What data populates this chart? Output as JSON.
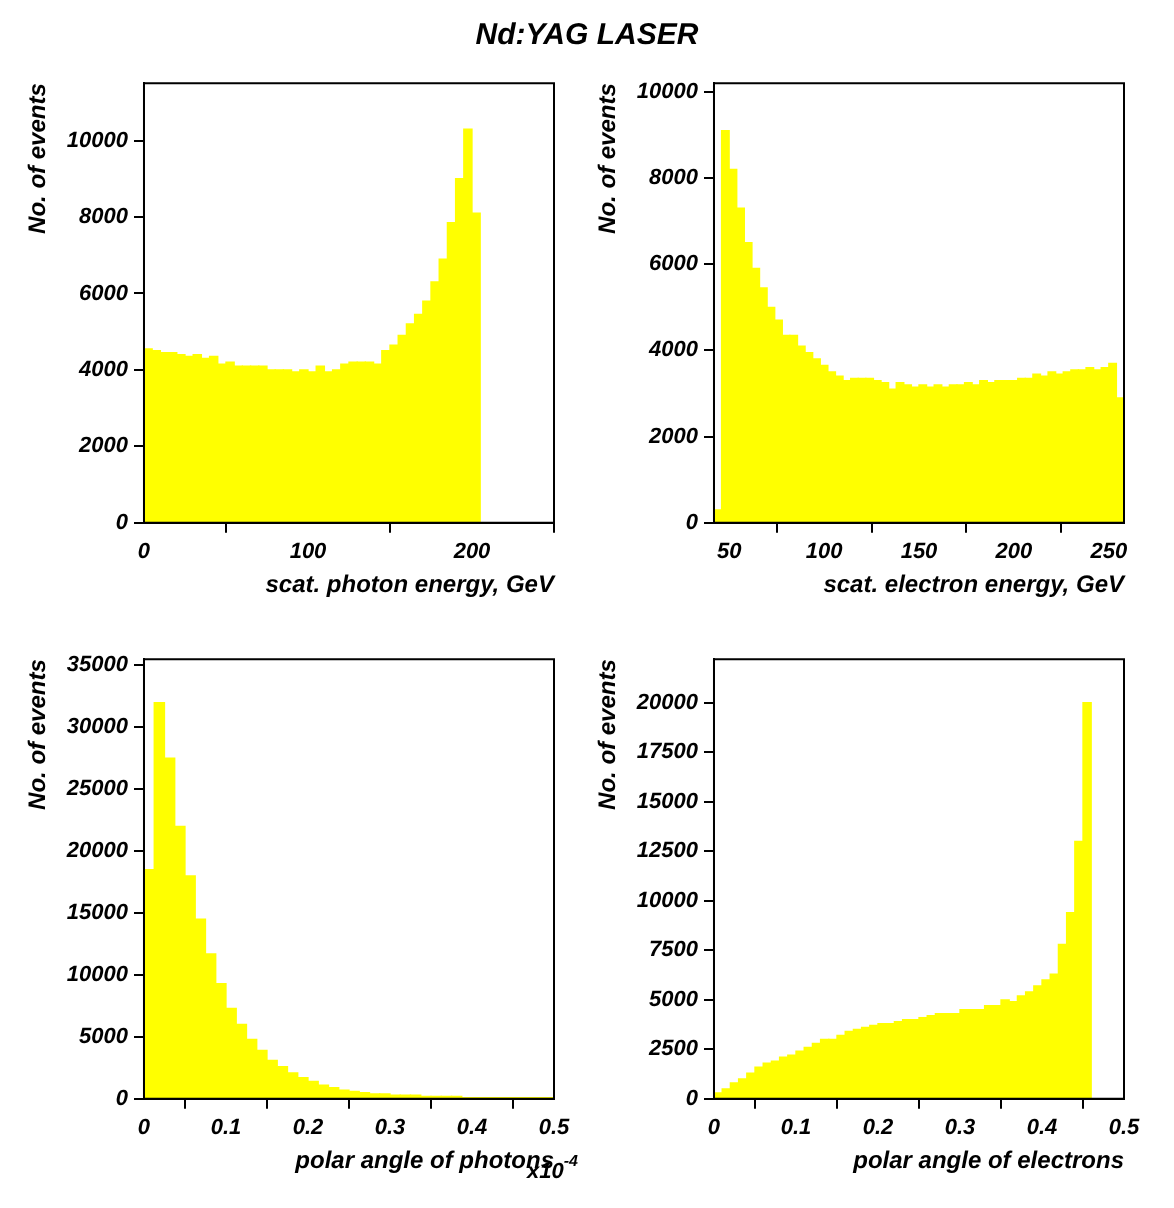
{
  "chart_data": [
    {
      "type": "histogram",
      "title": "Nd:YAG LASER",
      "xlabel": "scat. photon energy, GeV",
      "ylabel": "No. of events",
      "color": "#ffff00",
      "bins": [
        0,
        5,
        10,
        15,
        20,
        25,
        30,
        35,
        40,
        45,
        50,
        55,
        60,
        65,
        70,
        75,
        80,
        85,
        90,
        95,
        100,
        105,
        110,
        115,
        120,
        125,
        130,
        135,
        140,
        145,
        150,
        155,
        160,
        165,
        170,
        175,
        180,
        185,
        190,
        195,
        200,
        205
      ],
      "values": [
        4550,
        4500,
        4450,
        4450,
        4400,
        4350,
        4400,
        4300,
        4350,
        4150,
        4200,
        4100,
        4100,
        4100,
        4100,
        4000,
        4000,
        4000,
        3950,
        4000,
        3950,
        4100,
        3950,
        4000,
        4150,
        4200,
        4200,
        4200,
        4150,
        4500,
        4650,
        4900,
        5200,
        5450,
        5800,
        6300,
        6900,
        7850,
        9000,
        10300,
        8100
      ],
      "xlim": [
        0,
        250
      ],
      "xticks": [
        0,
        100,
        200
      ],
      "ylim": [
        0,
        11500
      ],
      "yticks": [
        0,
        2000,
        4000,
        6000,
        8000,
        10000
      ]
    },
    {
      "type": "histogram",
      "xlabel": "scat. electron energy, GeV",
      "ylabel": "No. of events",
      "color": "#ffff00",
      "bins": [
        42,
        46,
        50,
        54,
        58,
        62,
        66,
        70,
        74,
        78,
        82,
        86,
        90,
        94,
        98,
        102,
        106,
        110,
        114,
        118,
        122,
        126,
        130,
        134,
        138,
        142,
        146,
        150,
        154,
        158,
        162,
        166,
        170,
        174,
        178,
        182,
        186,
        190,
        194,
        198,
        202,
        206,
        210,
        214,
        218,
        222,
        226,
        230,
        234,
        238,
        242,
        246,
        250,
        254,
        258
      ],
      "values": [
        300,
        9100,
        8200,
        7300,
        6500,
        5900,
        5450,
        5000,
        4700,
        4350,
        4350,
        4100,
        3950,
        3800,
        3650,
        3500,
        3400,
        3300,
        3350,
        3350,
        3350,
        3300,
        3250,
        3100,
        3250,
        3200,
        3150,
        3200,
        3150,
        3200,
        3150,
        3200,
        3200,
        3250,
        3200,
        3300,
        3250,
        3300,
        3300,
        3300,
        3350,
        3350,
        3450,
        3400,
        3500,
        3450,
        3500,
        3550,
        3550,
        3600,
        3550,
        3600,
        3700,
        2900
      ],
      "xlim": [
        42,
        258
      ],
      "xticks": [
        50,
        100,
        150,
        200,
        250
      ],
      "ylim": [
        0,
        10200
      ],
      "yticks": [
        0,
        2000,
        4000,
        6000,
        8000,
        10000
      ]
    },
    {
      "type": "histogram",
      "xlabel": "polar angle of photons",
      "ylabel": "No. of events",
      "color": "#ffff00",
      "annotations": [
        "x10$^{-4}$"
      ],
      "bins": [
        0,
        0.0125,
        0.025,
        0.0375,
        0.05,
        0.0625,
        0.075,
        0.0875,
        0.1,
        0.1125,
        0.125,
        0.1375,
        0.15,
        0.1625,
        0.175,
        0.1875,
        0.2,
        0.2125,
        0.225,
        0.2375,
        0.25,
        0.2625,
        0.275,
        0.2875,
        0.3,
        0.3125,
        0.325,
        0.3375,
        0.35,
        0.3625,
        0.375,
        0.3875,
        0.4,
        0.4125,
        0.425,
        0.4375,
        0.45,
        0.4625,
        0.475,
        0.4875,
        0.5
      ],
      "values": [
        18500,
        32000,
        27500,
        22000,
        18000,
        14500,
        11700,
        9300,
        7300,
        6000,
        4800,
        3900,
        3100,
        2600,
        2100,
        1700,
        1400,
        1100,
        900,
        700,
        600,
        500,
        400,
        400,
        300,
        300,
        300,
        200,
        200,
        200,
        200,
        100,
        100,
        100,
        100,
        100,
        100,
        100,
        100,
        100
      ],
      "xlim": [
        0,
        0.5
      ],
      "xticks": [
        0,
        0.1,
        0.2,
        0.3,
        0.4,
        0.5
      ],
      "ylim": [
        0,
        35500
      ],
      "yticks": [
        0,
        5000,
        10000,
        15000,
        20000,
        25000,
        30000,
        35000
      ]
    },
    {
      "type": "histogram",
      "xlabel": "polar angle of electrons",
      "ylabel": "No. of events",
      "color": "#ffff00",
      "bins": [
        0,
        0.01,
        0.02,
        0.03,
        0.04,
        0.05,
        0.06,
        0.07,
        0.08,
        0.09,
        0.1,
        0.11,
        0.12,
        0.13,
        0.14,
        0.15,
        0.16,
        0.17,
        0.18,
        0.19,
        0.2,
        0.21,
        0.22,
        0.23,
        0.24,
        0.25,
        0.26,
        0.27,
        0.28,
        0.29,
        0.3,
        0.31,
        0.32,
        0.33,
        0.34,
        0.35,
        0.36,
        0.37,
        0.38,
        0.39,
        0.4,
        0.41,
        0.42,
        0.43,
        0.44,
        0.45,
        0.46
      ],
      "values": [
        300,
        500,
        800,
        1000,
        1300,
        1600,
        1800,
        1900,
        2100,
        2200,
        2400,
        2600,
        2800,
        3000,
        3000,
        3200,
        3400,
        3500,
        3600,
        3700,
        3800,
        3800,
        3900,
        4000,
        4000,
        4100,
        4200,
        4300,
        4300,
        4300,
        4500,
        4500,
        4500,
        4700,
        4700,
        5000,
        4900,
        5200,
        5400,
        5700,
        6000,
        6300,
        7800,
        9400,
        13000,
        20000
      ],
      "xlim": [
        0,
        0.5
      ],
      "xticks": [
        0,
        0.1,
        0.2,
        0.3,
        0.4,
        0.5
      ],
      "ylim": [
        0,
        22200
      ],
      "yticks": [
        0,
        2500,
        5000,
        7500,
        10000,
        12500,
        15000,
        17500,
        20000
      ]
    }
  ]
}
